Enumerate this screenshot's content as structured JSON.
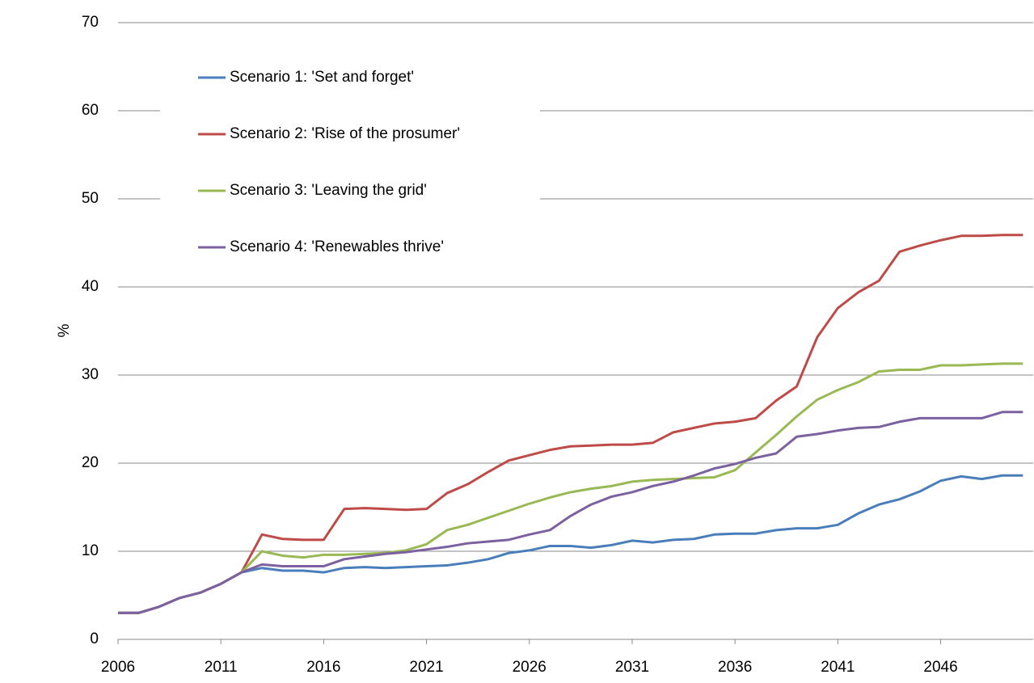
{
  "chart_data": {
    "type": "line",
    "y_label": "%",
    "x": [
      2006,
      2007,
      2008,
      2009,
      2010,
      2011,
      2012,
      2013,
      2014,
      2015,
      2016,
      2017,
      2018,
      2019,
      2020,
      2021,
      2022,
      2023,
      2024,
      2025,
      2026,
      2027,
      2028,
      2029,
      2030,
      2031,
      2032,
      2033,
      2034,
      2035,
      2036,
      2037,
      2038,
      2039,
      2040,
      2041,
      2042,
      2043,
      2044,
      2045,
      2046,
      2047,
      2048,
      2049,
      2050
    ],
    "series": [
      {
        "name": "Scenario 1: 'Set and forget'",
        "color": "#4a7ebb",
        "values": [
          3,
          3,
          3.7,
          4.7,
          5.3,
          6.3,
          7.6,
          8.1,
          7.8,
          7.8,
          7.6,
          8.1,
          8.2,
          8.1,
          8.2,
          8.3,
          8.4,
          8.7,
          9.1,
          9.8,
          10.1,
          10.6,
          10.6,
          10.4,
          10.7,
          11.2,
          11.0,
          11.3,
          11.4,
          11.9,
          12.0,
          12.0,
          12.4,
          12.6,
          12.6,
          13.0,
          14.3,
          15.3,
          15.9,
          16.8,
          18.0,
          18.5,
          18.2,
          18.6,
          18.6
        ]
      },
      {
        "name": "Scenario 2: 'Rise of the prosumer'",
        "color": "#be4b48",
        "values": [
          3,
          3,
          3.7,
          4.7,
          5.3,
          6.3,
          7.6,
          11.9,
          11.4,
          11.3,
          11.3,
          14.8,
          14.9,
          14.8,
          14.7,
          14.8,
          16.6,
          17.6,
          19.0,
          20.3,
          20.9,
          21.5,
          21.9,
          22.0,
          22.1,
          22.1,
          22.3,
          23.5,
          24.0,
          24.5,
          24.7,
          25.1,
          27.1,
          28.7,
          34.3,
          37.6,
          39.4,
          40.7,
          44.0,
          44.7,
          45.3,
          45.8,
          45.8,
          45.9,
          45.9
        ]
      },
      {
        "name": "Scenario 3: 'Leaving the grid'",
        "color": "#98b954",
        "values": [
          3,
          3,
          3.7,
          4.7,
          5.3,
          6.3,
          7.6,
          10.0,
          9.5,
          9.3,
          9.6,
          9.6,
          9.7,
          9.8,
          10.1,
          10.8,
          12.4,
          13.0,
          13.8,
          14.6,
          15.4,
          16.1,
          16.7,
          17.1,
          17.4,
          17.9,
          18.1,
          18.2,
          18.3,
          18.4,
          19.2,
          21.2,
          23.2,
          25.3,
          27.2,
          28.3,
          29.2,
          30.4,
          30.6,
          30.6,
          31.1,
          31.1,
          31.2,
          31.3,
          31.3
        ]
      },
      {
        "name": "Scenario 4: 'Renewables thrive'",
        "color": "#7d60a0",
        "values": [
          3,
          3,
          3.7,
          4.7,
          5.3,
          6.3,
          7.6,
          8.5,
          8.3,
          8.3,
          8.3,
          9.1,
          9.4,
          9.7,
          9.9,
          10.2,
          10.5,
          10.9,
          11.1,
          11.3,
          11.9,
          12.4,
          14.0,
          15.3,
          16.2,
          16.7,
          17.4,
          17.9,
          18.6,
          19.4,
          19.9,
          20.6,
          21.1,
          23.0,
          23.3,
          23.7,
          24.0,
          24.1,
          24.7,
          25.1,
          25.1,
          25.1,
          25.1,
          25.8,
          25.8
        ]
      }
    ],
    "xlim": [
      2006,
      2050.5
    ],
    "xticks": [
      2006,
      2011,
      2016,
      2021,
      2026,
      2031,
      2036,
      2041,
      2046
    ],
    "ylim": [
      0,
      70
    ],
    "yticks": [
      0,
      10,
      20,
      30,
      40,
      50,
      60,
      70
    ],
    "grid": true,
    "legend": "upper-left"
  }
}
